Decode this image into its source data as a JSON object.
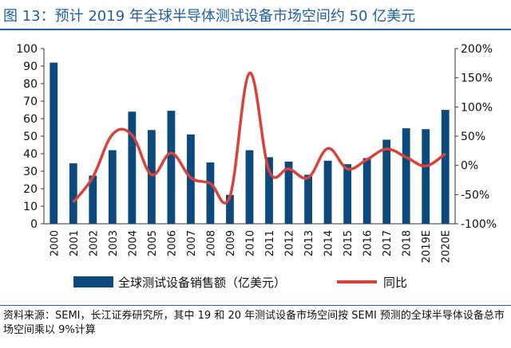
{
  "title": "图 13：预计 2019 年全球半导体测试设备市场空间约 50 亿美元",
  "source_note": "资料来源：SEMI，长江证券研究所，其中 19 和 20 年测试设备市场空间按 SEMI 预测的全球半导体设备总市场空间乘以 9%计算",
  "colors": {
    "bar": "#0c4a7e",
    "line": "#d9423a",
    "title": "#1f5fa6"
  },
  "chart_data": {
    "type": "bar",
    "categories": [
      "2000",
      "2001",
      "2002",
      "2003",
      "2004",
      "2005",
      "2006",
      "2007",
      "2008",
      "2009",
      "2010",
      "2011",
      "2012",
      "2013",
      "2014",
      "2015",
      "2016",
      "2017",
      "2018",
      "2019E",
      "2020E"
    ],
    "series": [
      {
        "name": "全球测试设备销售额（亿美元）",
        "type": "bar",
        "axis": "left",
        "values": [
          92,
          34.5,
          27.5,
          42,
          64,
          53.5,
          64.5,
          51,
          35,
          16.5,
          42,
          38,
          35.5,
          28,
          36,
          34,
          37.5,
          48,
          54.5,
          54,
          65
        ]
      },
      {
        "name": "同比",
        "type": "line",
        "axis": "right",
        "values": [
          null,
          -63,
          -20,
          53,
          52,
          -16,
          21,
          -21,
          -31,
          -53,
          158,
          -9,
          -6,
          -21,
          29,
          -6,
          10,
          28,
          14,
          -1,
          20
        ]
      }
    ],
    "yleft": {
      "ylim": [
        0,
        100
      ],
      "ticks": [
        "0",
        "10",
        "20",
        "30",
        "40",
        "50",
        "60",
        "70",
        "80",
        "90",
        "100"
      ]
    },
    "yright": {
      "ylim": [
        -100,
        200
      ],
      "ticks": [
        "-100%",
        "-50%",
        "0%",
        "50%",
        "100%",
        "150%",
        "200%"
      ]
    },
    "legend": {
      "placement": "bottom",
      "labels": [
        "全球测试设备销售额（亿美元）",
        "同比"
      ]
    },
    "grid": false
  }
}
